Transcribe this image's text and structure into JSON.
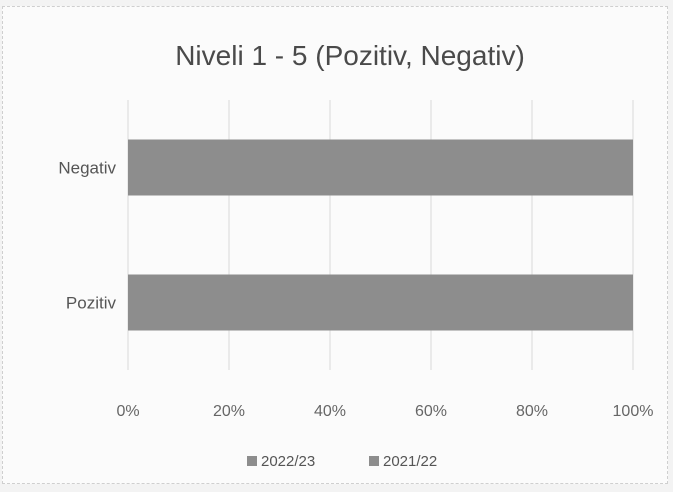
{
  "chart_data": {
    "type": "bar",
    "orientation": "horizontal",
    "stacked": "100%",
    "title": "Niveli 1 - 5 (Pozitiv, Negativ)",
    "categories": [
      "Negativ",
      "Pozitiv"
    ],
    "series": [
      {
        "name": "2022/23",
        "values": [
          0,
          0
        ],
        "color": "#8d8d8d"
      },
      {
        "name": "2021/22",
        "values": [
          100,
          100
        ],
        "color": "#8d8d8d"
      }
    ],
    "x_ticks": [
      "0%",
      "20%",
      "40%",
      "60%",
      "80%",
      "100%"
    ],
    "xlim": [
      0,
      100
    ],
    "grid": true,
    "legend": "bottom"
  }
}
